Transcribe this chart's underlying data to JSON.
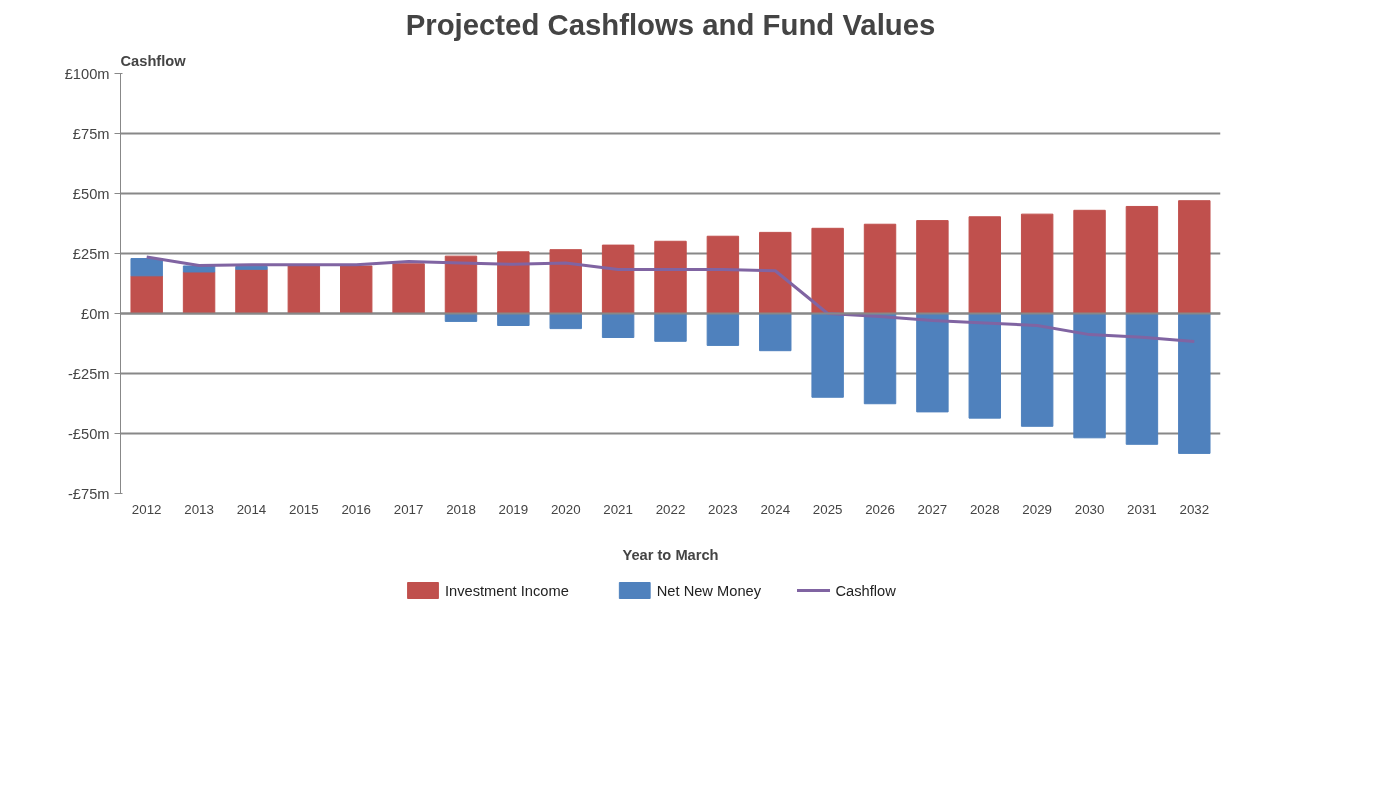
{
  "chart_data": {
    "type": "bar",
    "stacked": true,
    "title": "Projected Cashflows and Fund Values",
    "xlabel": "Year to March",
    "ylabel": "Cashflow",
    "categories": [
      "2012",
      "2013",
      "2014",
      "2015",
      "2016",
      "2017",
      "2018",
      "2019",
      "2020",
      "2021",
      "2022",
      "2023",
      "2024",
      "2025",
      "2026",
      "2027",
      "2028",
      "2029",
      "2030",
      "2031",
      "2032"
    ],
    "series": [
      {
        "name": "Investment Income",
        "color": "#c0504d",
        "values": [
          15.7,
          17.3,
          18.4,
          19.8,
          19.8,
          20.7,
          23.9,
          25.7,
          26.6,
          28.5,
          30.1,
          32.2,
          33.8,
          35.5,
          37.2,
          38.7,
          40.3,
          41.4,
          43.0,
          44.6,
          47.0
        ]
      },
      {
        "name": "Net New Money",
        "color": "#4f81bd",
        "values": [
          7.2,
          2.5,
          1.2,
          null,
          null,
          null,
          -3.3,
          -5.0,
          -6.3,
          -10.0,
          -11.6,
          -13.3,
          -15.5,
          -34.9,
          -37.6,
          -41.0,
          -43.6,
          -47.0,
          -51.8,
          -54.5,
          -58.3
        ]
      },
      {
        "name": "Cashflow",
        "type": "line",
        "color": "#8064a2",
        "values": [
          23.5,
          20.0,
          20.3,
          20.3,
          20.3,
          21.7,
          21.0,
          20.5,
          21.0,
          18.3,
          18.3,
          18.3,
          17.8,
          0.0,
          -1.3,
          -2.9,
          -4.0,
          -5.0,
          -8.8,
          -9.9,
          -11.7
        ]
      }
    ],
    "ylim": [
      -75,
      100
    ],
    "yticks": [
      {
        "value": -75,
        "label": "-£75m"
      },
      {
        "value": -50,
        "label": "-£50m"
      },
      {
        "value": -25,
        "label": "-£25m"
      },
      {
        "value": 0,
        "label": "£0m"
      },
      {
        "value": 25,
        "label": "£25m"
      },
      {
        "value": 50,
        "label": "£50m"
      },
      {
        "value": 75,
        "label": "£75m"
      },
      {
        "value": 100,
        "label": "£100m"
      }
    ],
    "grid": "y",
    "legend": "bottom",
    "line_style": "solid",
    "marker": "none"
  }
}
